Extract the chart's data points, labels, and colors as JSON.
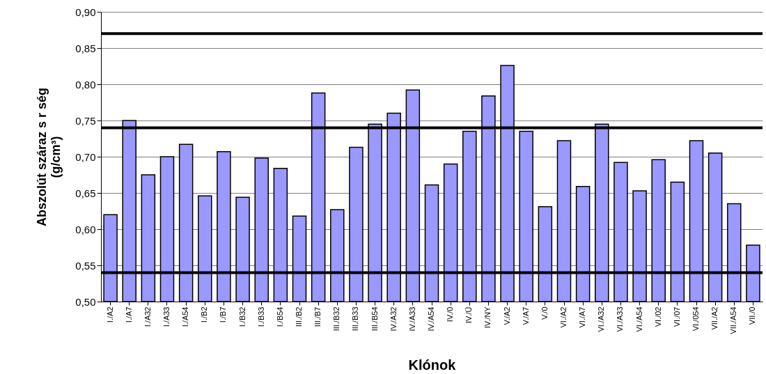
{
  "chart_data": {
    "type": "bar",
    "xlabel": "Klónok",
    "ylabel": "Abszolút száraz s r ség\n(g/cm³)",
    "categories": [
      "I./A2",
      "I./A7",
      "I./A32",
      "I./A33",
      "I./A54",
      "I./B2",
      "I./B7",
      "I./B32",
      "I./B33",
      "I./B54",
      "III./B2",
      "III./B7",
      "III./B32",
      "III./B33",
      "III./B54",
      "IV./A32",
      "IV./A33",
      "IV./A54",
      "IV./0",
      "IV./Ü",
      "IV./NY",
      "V./A2",
      "V./A7",
      "V./0",
      "VI./A2",
      "VI./A7",
      "VI./A32",
      "VI./A33",
      "VI./A54",
      "VI./02",
      "VI./07",
      "VI./054",
      "VII./A2",
      "VII./A54",
      "VII./0"
    ],
    "values": [
      0.62,
      0.75,
      0.675,
      0.7,
      0.717,
      0.646,
      0.707,
      0.644,
      0.698,
      0.684,
      0.618,
      0.788,
      0.627,
      0.713,
      0.745,
      0.76,
      0.792,
      0.661,
      0.69,
      0.735,
      0.784,
      0.826,
      0.735,
      0.631,
      0.722,
      0.659,
      0.745,
      0.692,
      0.653,
      0.696,
      0.665,
      0.722,
      0.705,
      0.635,
      0.578
    ],
    "color": "#9999ff",
    "ylim": [
      0.5,
      0.9
    ],
    "yticks": [
      {
        "value": 0.5,
        "label": "0,50"
      },
      {
        "value": 0.55,
        "label": "0,55"
      },
      {
        "value": 0.6,
        "label": "0,60"
      },
      {
        "value": 0.65,
        "label": "0,65"
      },
      {
        "value": 0.7,
        "label": "0,70"
      },
      {
        "value": 0.75,
        "label": "0,75"
      },
      {
        "value": 0.8,
        "label": "0,80"
      },
      {
        "value": 0.85,
        "label": "0,85"
      },
      {
        "value": 0.9,
        "label": "0,90"
      }
    ],
    "grid": "y",
    "ref_lines": [
      {
        "axis": "y",
        "value": 0.87,
        "color": "#000000"
      },
      {
        "axis": "y",
        "value": 0.74,
        "color": "#000000"
      },
      {
        "axis": "y",
        "value": 0.54,
        "color": "#000000"
      }
    ]
  }
}
